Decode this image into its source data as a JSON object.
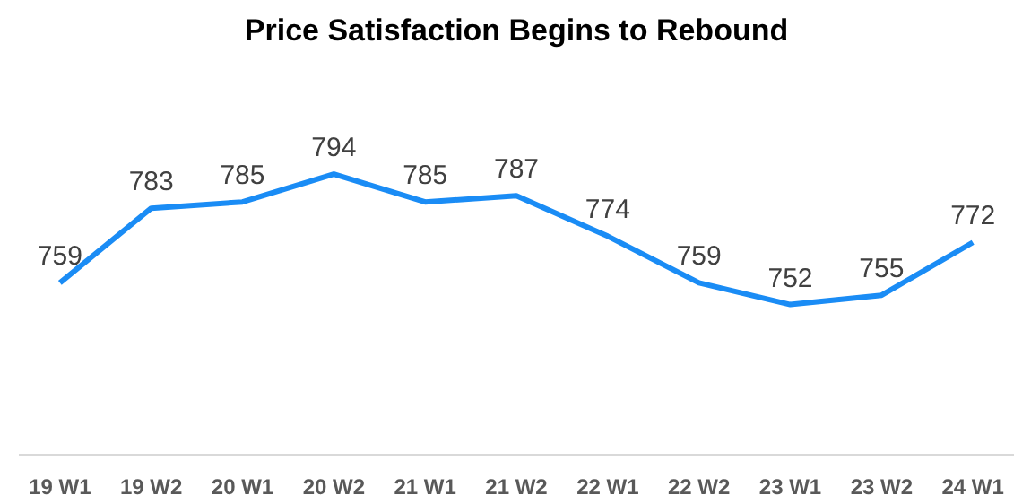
{
  "chart_data": {
    "type": "line",
    "title": "Price Satisfaction Begins to Rebound",
    "categories": [
      "19 W1",
      "19 W2",
      "20 W1",
      "20 W2",
      "21 W1",
      "21 W2",
      "22 W1",
      "22 W2",
      "23 W1",
      "23 W2",
      "24 W1"
    ],
    "series": [
      {
        "color": "#1a8cf5",
        "values": [
          759,
          783,
          785,
          794,
          785,
          787,
          774,
          759,
          752,
          755,
          772
        ]
      }
    ],
    "data_labels": true,
    "grid": false,
    "marker": "none",
    "line_style": "solid"
  }
}
